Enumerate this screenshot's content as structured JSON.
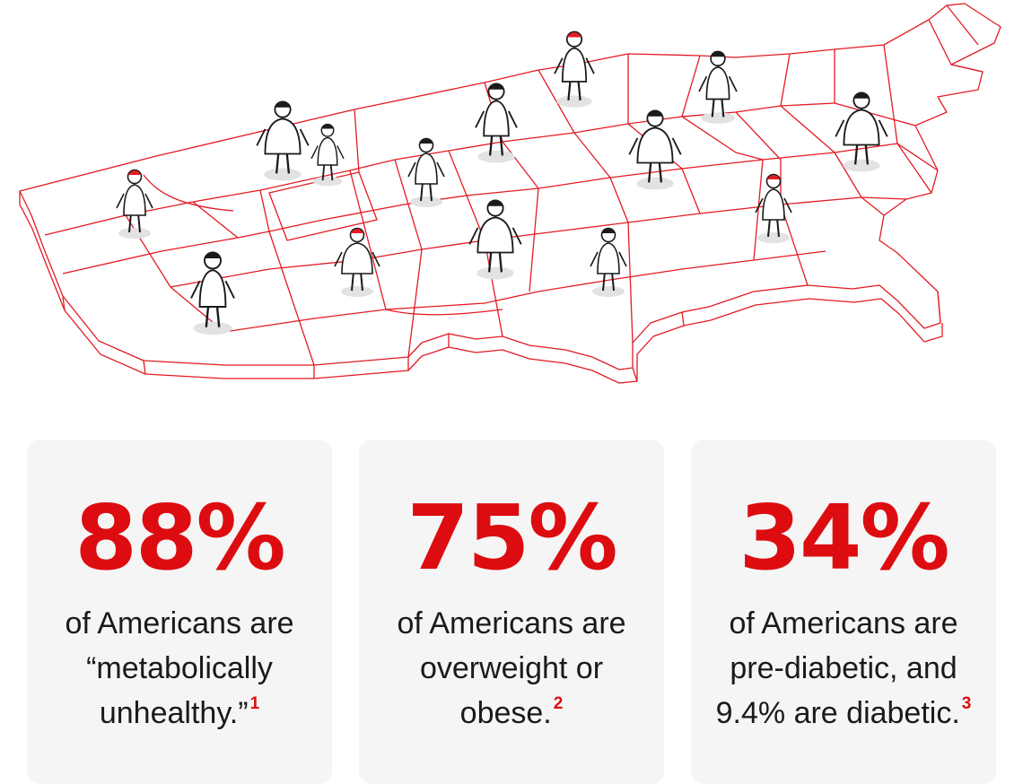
{
  "map": {
    "line_color": "#e31b23",
    "figure_color": "#1a1a1a"
  },
  "stats": [
    {
      "value": "88%",
      "lines": [
        "of Americans are",
        "“metabolically",
        "unhealthy.”"
      ],
      "footnote": "1"
    },
    {
      "value": "75%",
      "lines": [
        "of Americans are",
        "overweight or",
        "obese."
      ],
      "footnote": "2"
    },
    {
      "value": "34%",
      "lines": [
        "of Americans are",
        "pre-diabetic, and",
        "9.4% are diabetic."
      ],
      "footnote": "3"
    }
  ],
  "colors": {
    "accent": "#dd0c10",
    "card_bg": "#f5f5f5",
    "text": "#1a1a1a"
  }
}
